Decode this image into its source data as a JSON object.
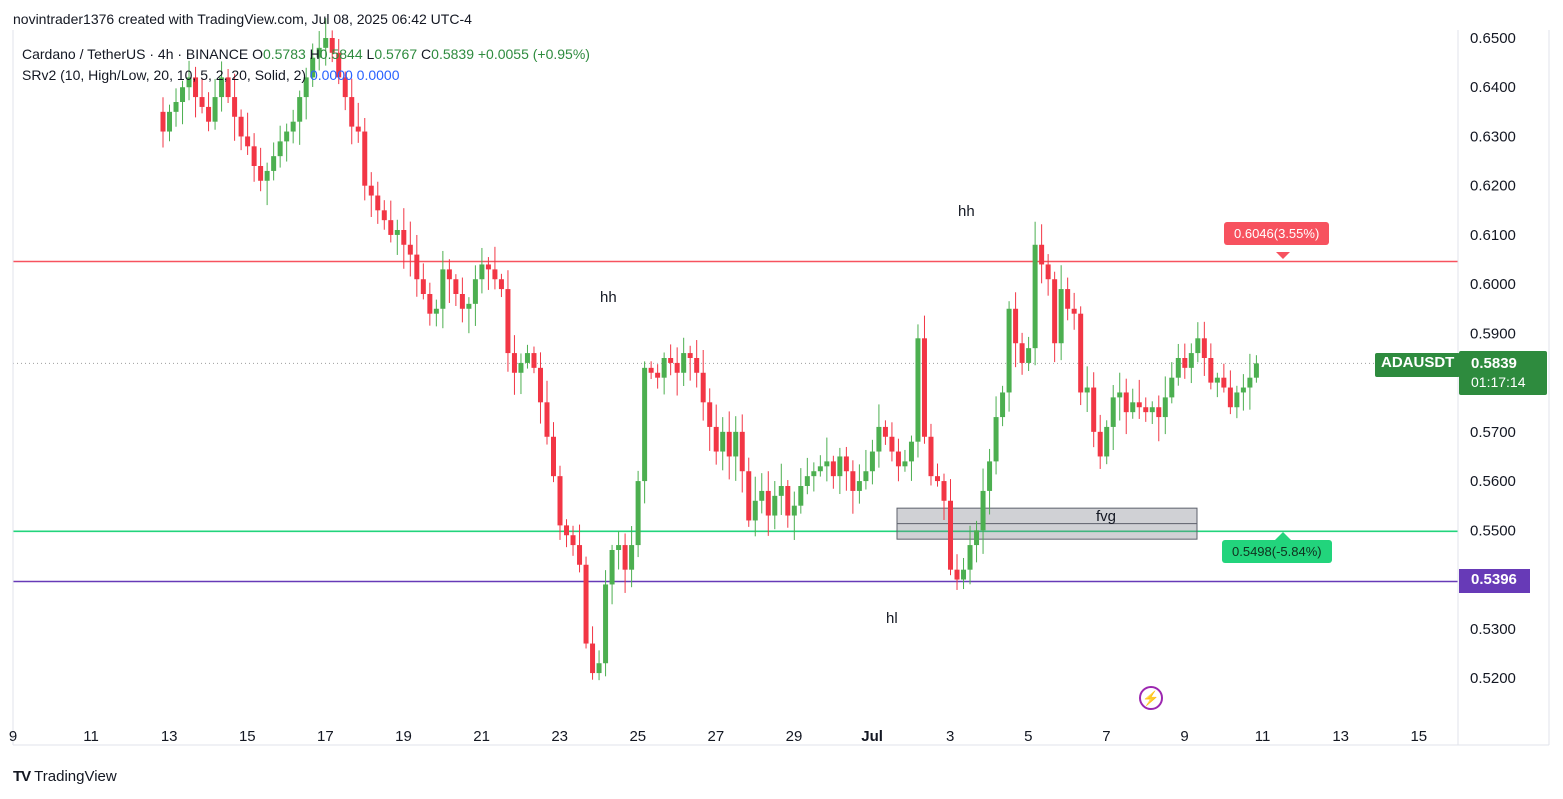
{
  "header": {
    "attribution": "novintrader1376 created with TradingView.com, Jul 08, 2025 06:42 UTC-4"
  },
  "legend": {
    "symbol_line": "Cardano / TetherUS · 4h · BINANCE",
    "open_label": "O",
    "open_value": "0.5783",
    "high_label": "H",
    "high_value": "0.5844",
    "low_label": "L",
    "low_value": "0.5767",
    "close_label": "C",
    "close_value": "0.5839",
    "change": "+0.0055 (+0.95%)",
    "indicator_line": "SRv2 (10, High/Low, 20, 10, 5, 2, 20, Solid, 2)",
    "indicator_val1": "0.0000",
    "indicator_val2": "0.0000"
  },
  "annotations": {
    "red_badge": "0.6046(3.55%)",
    "green_badge": "0.5498(-5.84%)",
    "fvg": "fvg",
    "hh1": "hh",
    "hh2": "hh",
    "hl": "hl"
  },
  "axis_tags": {
    "symbol": "ADAUSDT",
    "last_price": "0.5839",
    "countdown": "01:17:14",
    "purple_level": "0.5396"
  },
  "footer": {
    "logo": "TV",
    "brand": "TradingView"
  },
  "colors": {
    "up": "#26a69a",
    "up_green": "#4caf50",
    "down": "#f23645",
    "red_line": "#f7525f",
    "green_line": "#22d47c",
    "purple_line": "#673ab7",
    "last_price_tag": "#2e8b3e"
  },
  "chart_data": {
    "type": "candlestick",
    "symbol": "ADAUSDT",
    "timeframe": "4h",
    "y_ticks": [
      "0.6500",
      "0.6400",
      "0.6300",
      "0.6200",
      "0.6100",
      "0.6000",
      "0.5900",
      "0.5700",
      "0.5600",
      "0.5500",
      "0.5300",
      "0.5200"
    ],
    "x_ticks": [
      "9",
      "11",
      "13",
      "15",
      "17",
      "19",
      "21",
      "23",
      "25",
      "27",
      "29",
      "Jul",
      "3",
      "5",
      "7",
      "9",
      "11",
      "13",
      "15"
    ],
    "ylim": [
      0.513,
      0.651
    ],
    "horizontal_levels": [
      {
        "price": 0.6046,
        "color": "#f7525f"
      },
      {
        "price": 0.5498,
        "color": "#22d47c"
      },
      {
        "price": 0.5396,
        "color": "#673ab7"
      },
      {
        "price": 0.5839,
        "color": "#9e9e9e",
        "style": "dotted"
      }
    ],
    "fvg_zone": {
      "top": 0.5545,
      "bottom": 0.5482,
      "from_day": "Jul 1",
      "to_day": "Jul 9"
    },
    "closes": [
      0.631,
      0.635,
      0.637,
      0.64,
      0.642,
      0.638,
      0.636,
      0.633,
      0.638,
      0.642,
      0.638,
      0.634,
      0.63,
      0.628,
      0.624,
      0.621,
      0.623,
      0.626,
      0.629,
      0.631,
      0.633,
      0.638,
      0.642,
      0.646,
      0.648,
      0.65,
      0.647,
      0.642,
      0.638,
      0.632,
      0.631,
      0.62,
      0.618,
      0.615,
      0.613,
      0.61,
      0.611,
      0.608,
      0.606,
      0.601,
      0.598,
      0.594,
      0.595,
      0.603,
      0.601,
      0.598,
      0.595,
      0.596,
      0.601,
      0.604,
      0.603,
      0.601,
      0.599,
      0.586,
      0.582,
      0.584,
      0.586,
      0.583,
      0.576,
      0.569,
      0.561,
      0.551,
      0.549,
      0.547,
      0.543,
      0.527,
      0.521,
      0.523,
      0.539,
      0.546,
      0.547,
      0.542,
      0.547,
      0.56,
      0.583,
      0.582,
      0.581,
      0.585,
      0.584,
      0.582,
      0.586,
      0.585,
      0.582,
      0.576,
      0.571,
      0.566,
      0.57,
      0.565,
      0.57,
      0.562,
      0.552,
      0.556,
      0.558,
      0.553,
      0.557,
      0.559,
      0.553,
      0.555,
      0.559,
      0.561,
      0.562,
      0.563,
      0.564,
      0.561,
      0.565,
      0.562,
      0.558,
      0.56,
      0.562,
      0.566,
      0.571,
      0.569,
      0.566,
      0.563,
      0.564,
      0.568,
      0.589,
      0.569,
      0.561,
      0.56,
      0.556,
      0.542,
      0.54,
      0.542,
      0.547,
      0.55,
      0.558,
      0.564,
      0.573,
      0.578,
      0.595,
      0.588,
      0.584,
      0.587,
      0.608,
      0.604,
      0.601,
      0.588,
      0.599,
      0.595,
      0.594,
      0.578,
      0.579,
      0.57,
      0.565,
      0.571,
      0.577,
      0.578,
      0.574,
      0.576,
      0.575,
      0.574,
      0.575,
      0.573,
      0.577,
      0.581,
      0.585,
      0.583,
      0.586,
      0.589,
      0.585,
      0.58,
      0.581,
      0.579,
      0.575,
      0.578,
      0.579,
      0.581,
      0.5839
    ]
  }
}
